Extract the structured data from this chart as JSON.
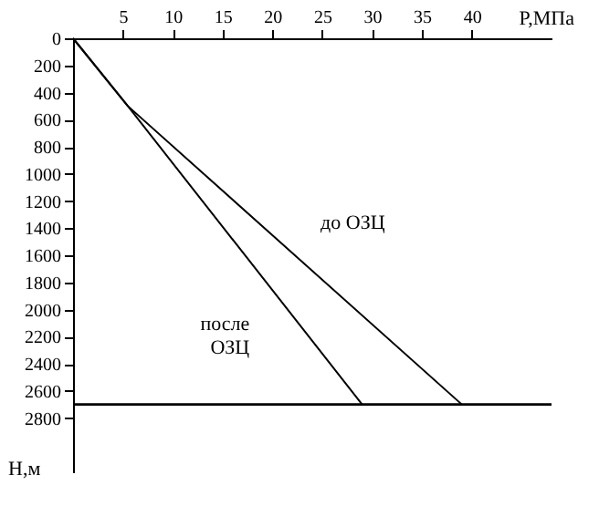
{
  "chart_data": {
    "type": "line",
    "xlabel": "P,МПа",
    "ylabel": "H,м",
    "xlim": [
      0,
      48
    ],
    "xticks": [
      5,
      10,
      15,
      20,
      25,
      30,
      35,
      40
    ],
    "ylim": [
      3200,
      0
    ],
    "yticks": [
      0,
      200,
      400,
      600,
      800,
      1000,
      1200,
      1400,
      1600,
      1800,
      2000,
      2200,
      2400,
      2600,
      2800
    ],
    "series": [
      {
        "color": "#000000",
        "x": [
          0,
          5.5,
          39
        ],
        "values": [
          0,
          500,
          2700
        ]
      },
      {
        "color": "#000000",
        "x": [
          0,
          5.5,
          29
        ],
        "values": [
          0,
          500,
          2700
        ]
      }
    ],
    "annotations": [
      {
        "text": "до ОЗЦ",
        "x": 23,
        "y": 1620
      },
      {
        "text": "после ОЗЦ",
        "x": 21,
        "y": 1950
      }
    ],
    "ref_lines": [
      {
        "axis": "y",
        "value": 2700,
        "color": "#000000"
      }
    ],
    "grid": false,
    "legend": false,
    "marker": "none",
    "line_style": "solid"
  }
}
